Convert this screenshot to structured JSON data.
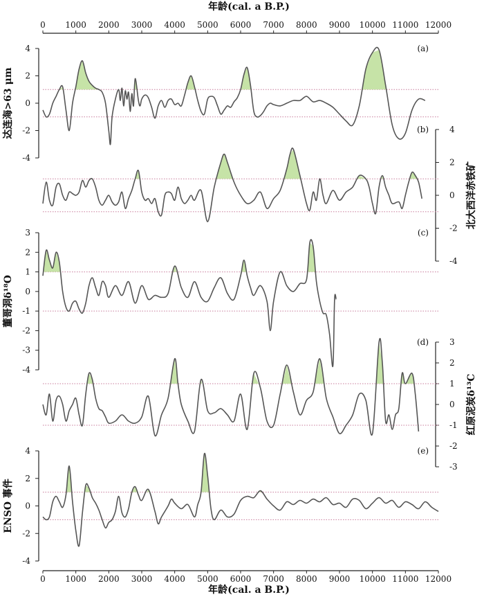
{
  "chart_data": {
    "type": "line",
    "xlabel_top": "年龄(cal. a B.P.)",
    "xlabel_bottom": "年龄(cal. a B.P.)",
    "xlim": [
      0,
      12000
    ],
    "x_ticks": [
      0,
      1000,
      2000,
      3000,
      4000,
      5000,
      6000,
      7000,
      8000,
      9000,
      10000,
      11000,
      12000
    ],
    "colors": {
      "line": "#555555",
      "fill": "#c6e3a7",
      "ref": "#c77a9a",
      "axis": "#222222"
    },
    "panels": [
      {
        "id": "a",
        "tag": "(a)",
        "ylabel": "达连海>63 μm",
        "axis_side": "left",
        "ylim": [
          -4,
          4
        ],
        "y_ticks": [
          4,
          2,
          0,
          -2,
          -4
        ],
        "ref_lines": [
          1,
          -1
        ],
        "threshold": 1,
        "x": [
          0,
          100,
          200,
          300,
          400,
          500,
          600,
          700,
          800,
          900,
          1000,
          1100,
          1200,
          1300,
          1400,
          1500,
          1600,
          1700,
          1800,
          1900,
          2000,
          2050,
          2100,
          2200,
          2300,
          2350,
          2400,
          2450,
          2500,
          2550,
          2600,
          2650,
          2700,
          2750,
          2800,
          2900,
          2950,
          3000,
          3100,
          3200,
          3300,
          3400,
          3500,
          3600,
          3700,
          3800,
          3900,
          4000,
          4100,
          4200,
          4300,
          4400,
          4500,
          4600,
          4700,
          4800,
          4900,
          5000,
          5100,
          5200,
          5300,
          5400,
          5500,
          5600,
          5700,
          5800,
          5900,
          6000,
          6100,
          6200,
          6300,
          6400,
          6500,
          6600,
          6700,
          6800,
          6900,
          7000,
          7200,
          7400,
          7600,
          7800,
          8000,
          8200,
          8400,
          8600,
          8800,
          9000,
          9200,
          9400,
          9600,
          9800,
          10000,
          10200,
          10400,
          10600,
          10800,
          11000,
          11200,
          11400,
          11600
        ],
        "y": [
          -0.5,
          -1,
          -0.8,
          0,
          0.5,
          1,
          1.2,
          -0.5,
          -2,
          0,
          1.2,
          2.5,
          3.1,
          2.2,
          1.6,
          1.3,
          1.1,
          1,
          0.8,
          0,
          -2,
          -3,
          -1,
          0.3,
          1,
          0.2,
          1.1,
          -0.2,
          0.9,
          0.3,
          0.8,
          -0.6,
          0.7,
          -0.2,
          1.8,
          0.2,
          -0.2,
          0.3,
          0.6,
          0.4,
          -0.3,
          -1.1,
          -0.2,
          0.2,
          -0.3,
          0.2,
          0.3,
          -0.1,
          0,
          -0.2,
          0.6,
          1.5,
          2,
          1.2,
          0.2,
          -0.6,
          -0.8,
          0.3,
          0.5,
          0.4,
          -0.2,
          -0.8,
          -0.5,
          -0.2,
          -0.3,
          0.1,
          0.4,
          1,
          2.1,
          2.6,
          1.3,
          -0.6,
          -1,
          -0.9,
          -0.6,
          -0.2,
          0,
          -0.1,
          -0.2,
          0,
          0.2,
          0.2,
          0.5,
          0.1,
          0.2,
          0,
          -0.3,
          -0.8,
          -1.3,
          -1.6,
          -0.2,
          2.5,
          3.7,
          3.9,
          1.3,
          -1.6,
          -2.6,
          -2.2,
          -0.5,
          0.3,
          0.2
        ]
      },
      {
        "id": "b",
        "tag": "(b)",
        "ylabel": "北大西洋赤铁矿",
        "axis_side": "right",
        "ylim": [
          -4,
          4
        ],
        "y_ticks": [
          4,
          2,
          0,
          -2,
          -4
        ],
        "ref_lines": [
          1,
          -1
        ],
        "threshold": 1,
        "x": [
          0,
          100,
          200,
          300,
          400,
          500,
          600,
          700,
          800,
          900,
          1000,
          1100,
          1200,
          1300,
          1400,
          1500,
          1600,
          1700,
          1800,
          1900,
          2000,
          2100,
          2200,
          2300,
          2400,
          2500,
          2600,
          2700,
          2800,
          2900,
          3000,
          3100,
          3200,
          3300,
          3400,
          3500,
          3600,
          3700,
          3800,
          3900,
          4000,
          4100,
          4200,
          4300,
          4400,
          4500,
          4600,
          4800,
          5000,
          5200,
          5400,
          5500,
          5600,
          5800,
          6000,
          6200,
          6400,
          6600,
          6800,
          7000,
          7200,
          7400,
          7500,
          7600,
          7800,
          8000,
          8100,
          8200,
          8300,
          8400,
          8500,
          8600,
          8800,
          9000,
          9200,
          9400,
          9600,
          9800,
          9900,
          10000,
          10100,
          10200,
          10300,
          10400,
          10500,
          10600,
          10800,
          10900,
          11000,
          11100,
          11200,
          11300,
          11400,
          11500
        ],
        "y": [
          -0.5,
          0.8,
          -0.3,
          -0.6,
          0.5,
          0.7,
          0,
          -0.3,
          0.2,
          0.1,
          0,
          0.2,
          0.9,
          0.5,
          0.9,
          1,
          0.5,
          -0.3,
          -0.6,
          -0.3,
          0,
          -0.4,
          -0.6,
          -0.4,
          0.2,
          -0.8,
          -0.2,
          0.3,
          1,
          1.5,
          0.2,
          -0.3,
          -0.2,
          -0.5,
          -0.2,
          -1,
          -1.2,
          0,
          0.2,
          0.1,
          -0.3,
          0.5,
          -0.2,
          -0.5,
          -0.3,
          0,
          -0.3,
          0.3,
          -1.6,
          0.5,
          2,
          2.5,
          2,
          0.8,
          0,
          -0.5,
          -0.3,
          0.2,
          -0.8,
          -0.2,
          0.3,
          1.6,
          2.5,
          2.8,
          1.2,
          -0.5,
          -0.9,
          0.2,
          -0.3,
          1,
          0,
          -0.5,
          0.3,
          -0.3,
          0.2,
          0.5,
          1.2,
          1,
          0.5,
          -0.5,
          -1.1,
          0.5,
          1.2,
          0.5,
          0,
          -0.5,
          -0.4,
          -0.8,
          0,
          0.8,
          1.4,
          1.2,
          0.8,
          -0.2
        ]
      },
      {
        "id": "c",
        "tag": "(c)",
        "ylabel": "董哥洞δ¹⁸O",
        "axis_side": "left",
        "ylim": [
          -4,
          3
        ],
        "y_ticks": [
          3,
          2,
          1,
          0,
          -1,
          -2,
          -3,
          -4
        ],
        "ref_lines": [
          1,
          -1
        ],
        "threshold": 1,
        "x": [
          0,
          100,
          200,
          300,
          400,
          500,
          600,
          700,
          800,
          900,
          1000,
          1100,
          1200,
          1300,
          1400,
          1500,
          1600,
          1700,
          1800,
          1900,
          2000,
          2200,
          2400,
          2600,
          2800,
          3000,
          3200,
          3400,
          3600,
          3800,
          4000,
          4200,
          4400,
          4600,
          4800,
          5000,
          5200,
          5400,
          5600,
          5800,
          6000,
          6100,
          6200,
          6300,
          6400,
          6600,
          6800,
          6900,
          7000,
          7200,
          7400,
          7600,
          7800,
          8000,
          8100,
          8200,
          8300,
          8400,
          8500,
          8600,
          8700,
          8800,
          8850,
          8900
        ],
        "y": [
          0.8,
          2.1,
          1.6,
          1.2,
          2,
          1.5,
          0,
          -0.8,
          -1,
          -0.6,
          -0.5,
          -0.9,
          -1.1,
          -0.6,
          0.3,
          0.7,
          0.2,
          -0.2,
          0.5,
          0.3,
          -0.3,
          0.3,
          -0.2,
          0.5,
          -0.6,
          0.3,
          -0.4,
          -0.2,
          -0.3,
          -0.1,
          1.3,
          0.2,
          -0.3,
          0.5,
          -0.3,
          -0.5,
          0.2,
          0.7,
          -0.1,
          -0.4,
          0.8,
          1.6,
          0.8,
          0.2,
          -0.2,
          0.3,
          -0.5,
          -2,
          -0.5,
          1,
          0.3,
          0,
          0.4,
          0.6,
          2.5,
          2.3,
          0.5,
          -0.5,
          -1.1,
          -1.2,
          -2.2,
          -3.8,
          -0.4,
          -0.4
        ]
      },
      {
        "id": "d",
        "tag": "(d)",
        "ylabel": "红原泥炭δ¹³C",
        "axis_side": "right",
        "ylim": [
          -3,
          3
        ],
        "y_ticks": [
          3,
          2,
          1,
          0,
          -1,
          -2,
          -3
        ],
        "ref_lines": [
          1,
          -1
        ],
        "threshold": 1,
        "x": [
          0,
          100,
          200,
          300,
          400,
          500,
          600,
          700,
          800,
          900,
          1000,
          1100,
          1200,
          1300,
          1400,
          1500,
          1600,
          1700,
          1800,
          1900,
          2000,
          2200,
          2400,
          2600,
          2800,
          3000,
          3200,
          3400,
          3600,
          3800,
          4000,
          4100,
          4200,
          4400,
          4600,
          4800,
          5000,
          5200,
          5400,
          5600,
          5800,
          6000,
          6200,
          6400,
          6600,
          6800,
          7000,
          7200,
          7400,
          7600,
          7800,
          8000,
          8200,
          8400,
          8600,
          8800,
          9000,
          9200,
          9400,
          9600,
          9800,
          10000,
          10200,
          10300,
          10400,
          10500,
          10600,
          10700,
          10800,
          10900,
          11000,
          11200,
          11300,
          11400
        ],
        "y": [
          0,
          -0.5,
          0.5,
          -0.8,
          0.2,
          0.4,
          0,
          -0.8,
          -0.3,
          0,
          0.3,
          -0.5,
          -1,
          0.5,
          1.5,
          1.2,
          0.3,
          -0.2,
          -0.3,
          -0.6,
          -0.9,
          -0.8,
          -0.5,
          -0.8,
          -0.9,
          -0.6,
          0.4,
          -1.5,
          -0.5,
          0.3,
          2.2,
          1,
          0,
          -0.8,
          -1.3,
          1.2,
          -0.3,
          -0.4,
          -0.2,
          -0.5,
          -0.8,
          0.5,
          -1.2,
          1.5,
          0.8,
          -0.8,
          -1,
          0.5,
          1.9,
          0.6,
          -0.5,
          0.2,
          0.6,
          2.2,
          0.3,
          -0.6,
          -1.4,
          -1,
          -0.5,
          0.5,
          0.2,
          -1.4,
          3,
          2,
          -0.8,
          -0.5,
          -1.2,
          -0.5,
          -0.2,
          1.5,
          1,
          1.5,
          0.5,
          -1.3
        ]
      },
      {
        "id": "e",
        "tag": "(e)",
        "ylabel": "ENSO 事件",
        "axis_side": "left",
        "ylim": [
          -4,
          4
        ],
        "y_ticks": [
          4,
          2,
          0,
          -2,
          -4
        ],
        "ref_lines": [
          1,
          -1
        ],
        "threshold": 1,
        "x": [
          0,
          100,
          200,
          300,
          400,
          500,
          600,
          700,
          800,
          900,
          1000,
          1100,
          1200,
          1300,
          1400,
          1500,
          1600,
          1700,
          1800,
          1900,
          2000,
          2100,
          2200,
          2300,
          2400,
          2500,
          2600,
          2700,
          2800,
          2900,
          3000,
          3200,
          3400,
          3500,
          3600,
          3800,
          3900,
          4000,
          4200,
          4400,
          4600,
          4700,
          4800,
          4900,
          5000,
          5100,
          5200,
          5400,
          5600,
          5800,
          6000,
          6200,
          6400,
          6600,
          6800,
          7000,
          7200,
          7400,
          7600,
          7800,
          8000,
          8200,
          8400,
          8600,
          8800,
          9000,
          9200,
          9400,
          9600,
          9800,
          10000,
          10200,
          10400,
          10600,
          10800,
          11000,
          11200,
          11400,
          11600,
          11800,
          12000
        ],
        "y": [
          -0.8,
          -1,
          -0.8,
          0.3,
          0.7,
          0.3,
          -0.1,
          0.8,
          2.9,
          0.3,
          -1.8,
          -2.9,
          -0.5,
          1.5,
          1.3,
          0.6,
          0.2,
          -0.3,
          -1,
          -1.6,
          -1.2,
          -1,
          -0.4,
          0.7,
          -0.5,
          -0.8,
          -0.2,
          1,
          1.4,
          0.8,
          0.4,
          1.2,
          -0.4,
          -1.3,
          -0.8,
          0,
          0.5,
          0.2,
          -0.2,
          0.1,
          -0.8,
          0.1,
          1,
          3.8,
          2.2,
          -0.2,
          -1,
          -0.3,
          -0.8,
          -0.6,
          0.4,
          0.7,
          0.6,
          1.1,
          0.5,
          0,
          -0.3,
          0.3,
          0.1,
          0.4,
          0.2,
          0.5,
          0.3,
          0.6,
          0.1,
          0.2,
          -0.1,
          0.5,
          0.4,
          -0.2,
          0.2,
          0.6,
          0.2,
          0.4,
          -0.1,
          0.3,
          0.1,
          -0.2,
          0.3,
          -0.1,
          -0.4
        ]
      }
    ]
  }
}
